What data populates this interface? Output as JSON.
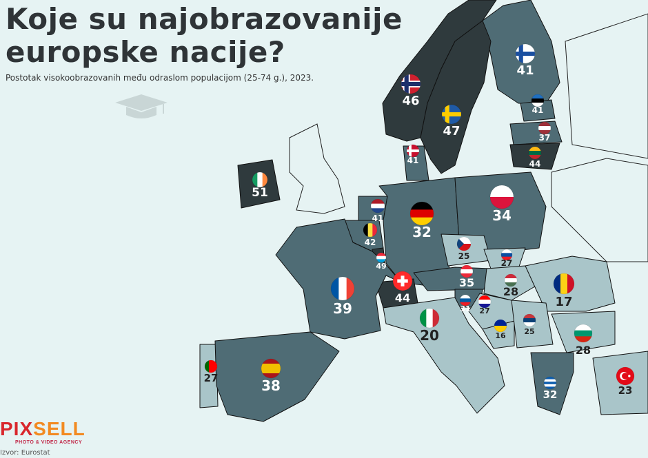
{
  "title_line1": "Koje su najobrazovanije",
  "title_line2": "europske nacije?",
  "subtitle": "Postotak visokoobrazovanih među odraslom populacijom (25-74 g.), 2023.",
  "source": "Izvor: Eurostat",
  "logo": {
    "text": "PIXSELL",
    "tagline": "PHOTO & VIDEO AGENCY"
  },
  "colors": {
    "background": "#e6f3f3",
    "high": "#2f3a3d",
    "mid": "#4f6c75",
    "low": "#a9c5c9",
    "label_light": "#ffffff",
    "label_dark": "#222222"
  },
  "countries": [
    {
      "id": "finland",
      "flag": "finland-flag-icon",
      "value": 41
    },
    {
      "id": "norway",
      "flag": "norway-flag-icon",
      "value": 46
    },
    {
      "id": "sweden",
      "flag": "sweden-flag-icon",
      "value": 47
    },
    {
      "id": "estonia",
      "flag": "estonia-flag-icon",
      "value": 41
    },
    {
      "id": "latvia",
      "flag": "latvia-flag-icon",
      "value": 37
    },
    {
      "id": "lithuania",
      "flag": "lithuania-flag-icon",
      "value": 44
    },
    {
      "id": "denmark",
      "flag": "denmark-flag-icon",
      "value": 41
    },
    {
      "id": "ireland",
      "flag": "ireland-flag-icon",
      "value": 51
    },
    {
      "id": "netherlands",
      "flag": "netherlands-flag-icon",
      "value": 41
    },
    {
      "id": "belgium",
      "flag": "belgium-flag-icon",
      "value": 42
    },
    {
      "id": "luxembourg",
      "flag": "luxembourg-flag-icon",
      "value": 49
    },
    {
      "id": "germany",
      "flag": "germany-flag-icon",
      "value": 32
    },
    {
      "id": "poland",
      "flag": "poland-flag-icon",
      "value": 34
    },
    {
      "id": "czechia",
      "flag": "czechia-flag-icon",
      "value": 25
    },
    {
      "id": "slovakia",
      "flag": "slovakia-flag-icon",
      "value": 27
    },
    {
      "id": "austria",
      "flag": "austria-flag-icon",
      "value": 35
    },
    {
      "id": "hungary",
      "flag": "hungary-flag-icon",
      "value": 28
    },
    {
      "id": "switzerland",
      "flag": "switzerland-flag-icon",
      "value": 44
    },
    {
      "id": "france",
      "flag": "france-flag-icon",
      "value": 39
    },
    {
      "id": "slovenia",
      "flag": "slovenia-flag-icon",
      "value": 31
    },
    {
      "id": "croatia",
      "flag": "croatia-flag-icon",
      "value": 27
    },
    {
      "id": "romania",
      "flag": "romania-flag-icon",
      "value": 17
    },
    {
      "id": "italy",
      "flag": "italy-flag-icon",
      "value": 20
    },
    {
      "id": "bosnia",
      "flag": "bosnia-flag-icon",
      "value": 16
    },
    {
      "id": "serbia",
      "flag": "serbia-flag-icon",
      "value": 25
    },
    {
      "id": "bulgaria",
      "flag": "bulgaria-flag-icon",
      "value": 28
    },
    {
      "id": "portugal",
      "flag": "portugal-flag-icon",
      "value": 27
    },
    {
      "id": "spain",
      "flag": "spain-flag-icon",
      "value": 38
    },
    {
      "id": "greece",
      "flag": "greece-flag-icon",
      "value": 32
    },
    {
      "id": "turkey",
      "flag": "turkey-flag-icon",
      "value": 23
    }
  ]
}
